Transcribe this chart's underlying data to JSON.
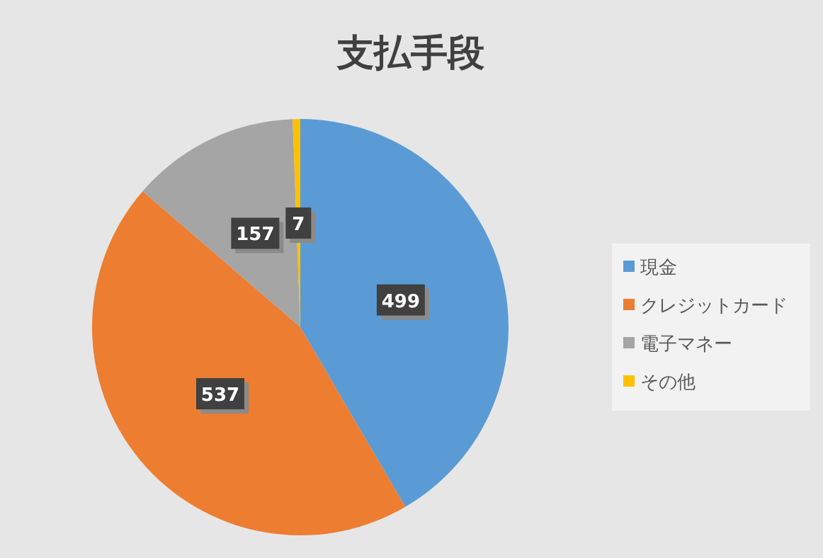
{
  "chart_data": {
    "type": "pie",
    "title": "支払手段",
    "categories": [
      "現金",
      "クレジットカード",
      "電子マネー",
      "その他"
    ],
    "values": [
      499,
      537,
      157,
      7
    ],
    "colors": [
      "#5b9bd5",
      "#ed7d31",
      "#a5a5a5",
      "#ffc000"
    ],
    "data_labels": true,
    "legend": "right"
  }
}
